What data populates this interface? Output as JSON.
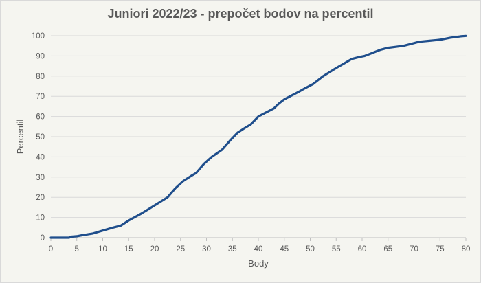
{
  "chart_data": {
    "type": "line",
    "title": "Juniori 2022/23 - prepočet bodov na percentil",
    "xlabel": "Body",
    "ylabel": "Percentil",
    "xlim": [
      0,
      80
    ],
    "ylim": [
      0,
      100
    ],
    "x_ticks": [
      0,
      5,
      10,
      15,
      20,
      25,
      30,
      35,
      40,
      45,
      50,
      55,
      60,
      65,
      70,
      75,
      80
    ],
    "y_ticks": [
      0,
      10,
      20,
      30,
      40,
      50,
      60,
      70,
      80,
      90,
      100
    ],
    "grid": "horizontal",
    "legend": "none",
    "series": [
      {
        "color": "#1f4e8c",
        "x": [
          0,
          3.5,
          4,
          5,
          6,
          8,
          10,
          12,
          13.5,
          15,
          17.5,
          20,
          22.5,
          24,
          25.5,
          27,
          28,
          29.5,
          31,
          33,
          34.5,
          36,
          37.5,
          38.5,
          40,
          41.5,
          43,
          44,
          45,
          46.5,
          48,
          49,
          50.5,
          52.5,
          55,
          57,
          58,
          59.5,
          60.5,
          61.5,
          62.5,
          63.5,
          65,
          66.5,
          68,
          69.5,
          71,
          73,
          75,
          77,
          79,
          80
        ],
        "y": [
          0,
          0,
          0.5,
          0.7,
          1.2,
          2,
          3.5,
          5,
          6,
          8.5,
          12,
          16,
          20,
          24.5,
          28,
          30.5,
          32,
          36.5,
          40,
          43.5,
          48,
          52,
          54.5,
          56,
          60,
          62,
          64,
          66.5,
          68.5,
          70.5,
          72.5,
          74,
          76,
          80,
          84,
          87,
          88.5,
          89.5,
          90,
          91,
          92,
          93,
          94,
          94.5,
          95,
          96,
          97,
          97.5,
          98,
          99,
          99.7,
          99.9
        ]
      }
    ]
  }
}
